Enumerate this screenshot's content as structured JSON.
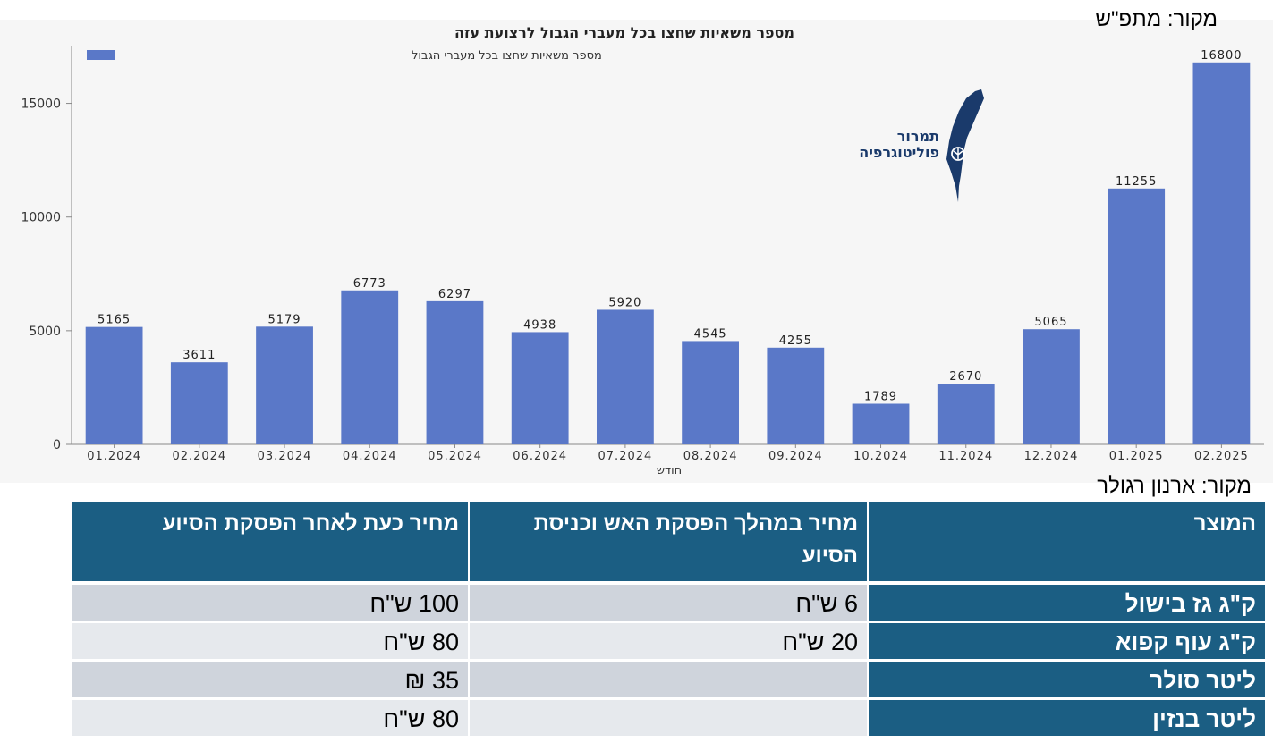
{
  "source_top": "מקור: מתפ\"ש",
  "source_bottom": "מקור: ארנון רגולר",
  "logo": {
    "line1": "תמרור",
    "line2": "פוליטוגרפיה"
  },
  "chart_data": {
    "type": "bar",
    "title": "מספר משאיות שחצו בכל מעברי הגבול לרצועת עזה",
    "xlabel": "חודש",
    "ylabel": "",
    "legend": {
      "label": "מספר משאיות שחצו בכל מעברי הגבול",
      "position": "top-left"
    },
    "categories": [
      "01.2024",
      "02.2024",
      "03.2024",
      "04.2024",
      "05.2024",
      "06.2024",
      "07.2024",
      "08.2024",
      "09.2024",
      "10.2024",
      "11.2024",
      "12.2024",
      "01.2025",
      "02.2025"
    ],
    "values": [
      5165,
      3611,
      5179,
      6773,
      6297,
      4938,
      5920,
      4545,
      4255,
      1789,
      2670,
      5065,
      11255,
      16800
    ],
    "yticks": [
      0,
      5000,
      10000,
      15000
    ],
    "ylim": [
      0,
      17500
    ],
    "bar_color": "#5a78c8",
    "grid": false,
    "data_labels": true
  },
  "table": {
    "headers": [
      "המוצר",
      "מחיר במהלך הפסקת האש וכניסת הסיוע",
      "מחיר כעת לאחר הפסקת הסיוע"
    ],
    "rows": [
      {
        "product": "ק\"ג גז בישול",
        "during": "6 ש\"ח",
        "now": "100 ש\"ח"
      },
      {
        "product": "ק\"ג עוף קפוא",
        "during": "20 ש\"ח",
        "now": "80 ש\"ח"
      },
      {
        "product": "ליטר סולר",
        "during": "",
        "now": "35 ₪"
      },
      {
        "product": "ליטר בנזין",
        "during": "",
        "now": "80 ש\"ח"
      }
    ]
  },
  "colors": {
    "header_bg": "#1b5e83",
    "row_odd": "#cfd4dc",
    "row_even": "#e6e9ed",
    "bar": "#5a78c8"
  }
}
